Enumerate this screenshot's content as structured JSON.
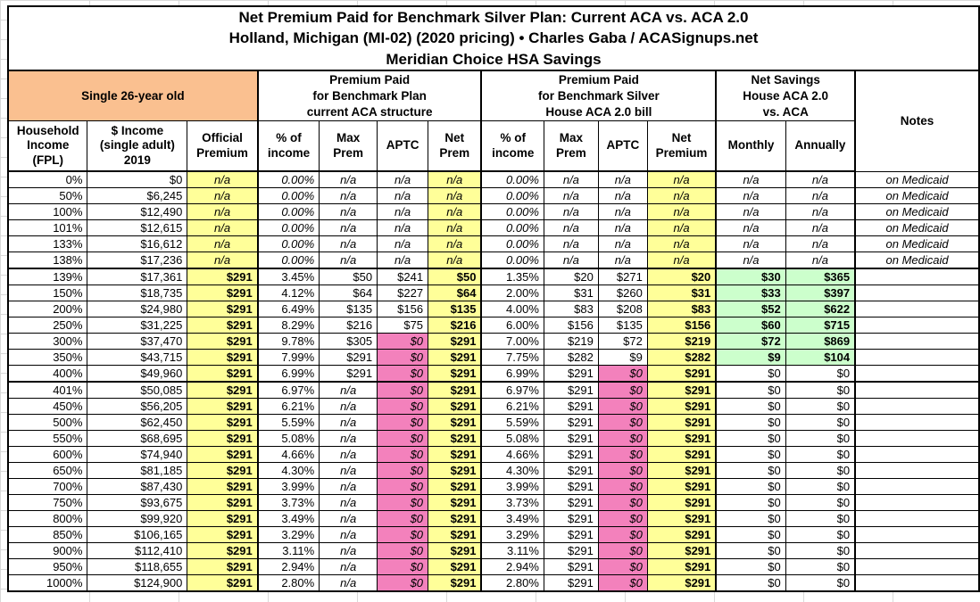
{
  "title": {
    "line1": "Net Premium Paid for Benchmark Silver Plan: Current ACA vs. ACA 2.0",
    "line2": "Holland, Michigan (MI-02) (2020 pricing) • Charles Gaba / ACASignups.net",
    "line3": "Meridian Choice HSA Savings"
  },
  "groups": {
    "subject": "Single 26-year old",
    "aca": "Premium Paid\nfor Benchmark Plan\ncurrent ACA structure",
    "house": "Premium Paid\nfor Benchmark Silver\nHouse ACA 2.0 bill",
    "savings": "Net Savings\nHouse ACA 2.0\nvs. ACA",
    "notes": "Notes"
  },
  "columns": [
    "Household\nIncome\n(FPL)",
    "$ Income\n(single adult)\n2019",
    "Official\nPremium",
    "% of\nincome",
    "Max\nPrem",
    "APTC",
    "Net\nPrem",
    "% of\nincome",
    "Max\nPrem",
    "APTC",
    "Net\nPremium",
    "Monthly",
    "Annually"
  ],
  "colors": {
    "subject_bg": "#FAC090",
    "highlight_yellow": "#FFFF99",
    "zero_aptc_pink": "#F381BC",
    "savings_green": "#CCFFCC",
    "sheet_gridline": "#D9D9D9",
    "border_black": "#000000"
  },
  "rows": [
    [
      "0%",
      "$0",
      "n/a",
      "0.00%",
      "n/a",
      "n/a",
      "n/a",
      "0.00%",
      "n/a",
      "n/a",
      "n/a",
      "n/a",
      "n/a",
      "on Medicaid"
    ],
    [
      "50%",
      "$6,245",
      "n/a",
      "0.00%",
      "n/a",
      "n/a",
      "n/a",
      "0.00%",
      "n/a",
      "n/a",
      "n/a",
      "n/a",
      "n/a",
      "on Medicaid"
    ],
    [
      "100%",
      "$12,490",
      "n/a",
      "0.00%",
      "n/a",
      "n/a",
      "n/a",
      "0.00%",
      "n/a",
      "n/a",
      "n/a",
      "n/a",
      "n/a",
      "on Medicaid"
    ],
    [
      "101%",
      "$12,615",
      "n/a",
      "0.00%",
      "n/a",
      "n/a",
      "n/a",
      "0.00%",
      "n/a",
      "n/a",
      "n/a",
      "n/a",
      "n/a",
      "on Medicaid"
    ],
    [
      "133%",
      "$16,612",
      "n/a",
      "0.00%",
      "n/a",
      "n/a",
      "n/a",
      "0.00%",
      "n/a",
      "n/a",
      "n/a",
      "n/a",
      "n/a",
      "on Medicaid"
    ],
    [
      "138%",
      "$17,236",
      "n/a",
      "0.00%",
      "n/a",
      "n/a",
      "n/a",
      "0.00%",
      "n/a",
      "n/a",
      "n/a",
      "n/a",
      "n/a",
      "on Medicaid"
    ],
    [
      "139%",
      "$17,361",
      "$291",
      "3.45%",
      "$50",
      "$241",
      "$50",
      "1.35%",
      "$20",
      "$271",
      "$20",
      "$30",
      "$365",
      ""
    ],
    [
      "150%",
      "$18,735",
      "$291",
      "4.12%",
      "$64",
      "$227",
      "$64",
      "2.00%",
      "$31",
      "$260",
      "$31",
      "$33",
      "$397",
      ""
    ],
    [
      "200%",
      "$24,980",
      "$291",
      "6.49%",
      "$135",
      "$156",
      "$135",
      "4.00%",
      "$83",
      "$208",
      "$83",
      "$52",
      "$622",
      ""
    ],
    [
      "250%",
      "$31,225",
      "$291",
      "8.29%",
      "$216",
      "$75",
      "$216",
      "6.00%",
      "$156",
      "$135",
      "$156",
      "$60",
      "$715",
      ""
    ],
    [
      "300%",
      "$37,470",
      "$291",
      "9.78%",
      "$305",
      "$0",
      "$291",
      "7.00%",
      "$219",
      "$72",
      "$219",
      "$72",
      "$869",
      ""
    ],
    [
      "350%",
      "$43,715",
      "$291",
      "7.99%",
      "$291",
      "$0",
      "$291",
      "7.75%",
      "$282",
      "$9",
      "$282",
      "$9",
      "$104",
      ""
    ],
    [
      "400%",
      "$49,960",
      "$291",
      "6.99%",
      "$291",
      "$0",
      "$291",
      "6.99%",
      "$291",
      "$0",
      "$291",
      "$0",
      "$0",
      ""
    ],
    [
      "401%",
      "$50,085",
      "$291",
      "6.97%",
      "n/a",
      "$0",
      "$291",
      "6.97%",
      "$291",
      "$0",
      "$291",
      "$0",
      "$0",
      ""
    ],
    [
      "450%",
      "$56,205",
      "$291",
      "6.21%",
      "n/a",
      "$0",
      "$291",
      "6.21%",
      "$291",
      "$0",
      "$291",
      "$0",
      "$0",
      ""
    ],
    [
      "500%",
      "$62,450",
      "$291",
      "5.59%",
      "n/a",
      "$0",
      "$291",
      "5.59%",
      "$291",
      "$0",
      "$291",
      "$0",
      "$0",
      ""
    ],
    [
      "550%",
      "$68,695",
      "$291",
      "5.08%",
      "n/a",
      "$0",
      "$291",
      "5.08%",
      "$291",
      "$0",
      "$291",
      "$0",
      "$0",
      ""
    ],
    [
      "600%",
      "$74,940",
      "$291",
      "4.66%",
      "n/a",
      "$0",
      "$291",
      "4.66%",
      "$291",
      "$0",
      "$291",
      "$0",
      "$0",
      ""
    ],
    [
      "650%",
      "$81,185",
      "$291",
      "4.30%",
      "n/a",
      "$0",
      "$291",
      "4.30%",
      "$291",
      "$0",
      "$291",
      "$0",
      "$0",
      ""
    ],
    [
      "700%",
      "$87,430",
      "$291",
      "3.99%",
      "n/a",
      "$0",
      "$291",
      "3.99%",
      "$291",
      "$0",
      "$291",
      "$0",
      "$0",
      ""
    ],
    [
      "750%",
      "$93,675",
      "$291",
      "3.73%",
      "n/a",
      "$0",
      "$291",
      "3.73%",
      "$291",
      "$0",
      "$291",
      "$0",
      "$0",
      ""
    ],
    [
      "800%",
      "$99,920",
      "$291",
      "3.49%",
      "n/a",
      "$0",
      "$291",
      "3.49%",
      "$291",
      "$0",
      "$291",
      "$0",
      "$0",
      ""
    ],
    [
      "850%",
      "$106,165",
      "$291",
      "3.29%",
      "n/a",
      "$0",
      "$291",
      "3.29%",
      "$291",
      "$0",
      "$291",
      "$0",
      "$0",
      ""
    ],
    [
      "900%",
      "$112,410",
      "$291",
      "3.11%",
      "n/a",
      "$0",
      "$291",
      "3.11%",
      "$291",
      "$0",
      "$291",
      "$0",
      "$0",
      ""
    ],
    [
      "950%",
      "$118,655",
      "$291",
      "2.94%",
      "n/a",
      "$0",
      "$291",
      "2.94%",
      "$291",
      "$0",
      "$291",
      "$0",
      "$0",
      ""
    ],
    [
      "1000%",
      "$124,900",
      "$291",
      "2.80%",
      "n/a",
      "$0",
      "$291",
      "2.80%",
      "$291",
      "$0",
      "$291",
      "$0",
      "$0",
      ""
    ]
  ]
}
